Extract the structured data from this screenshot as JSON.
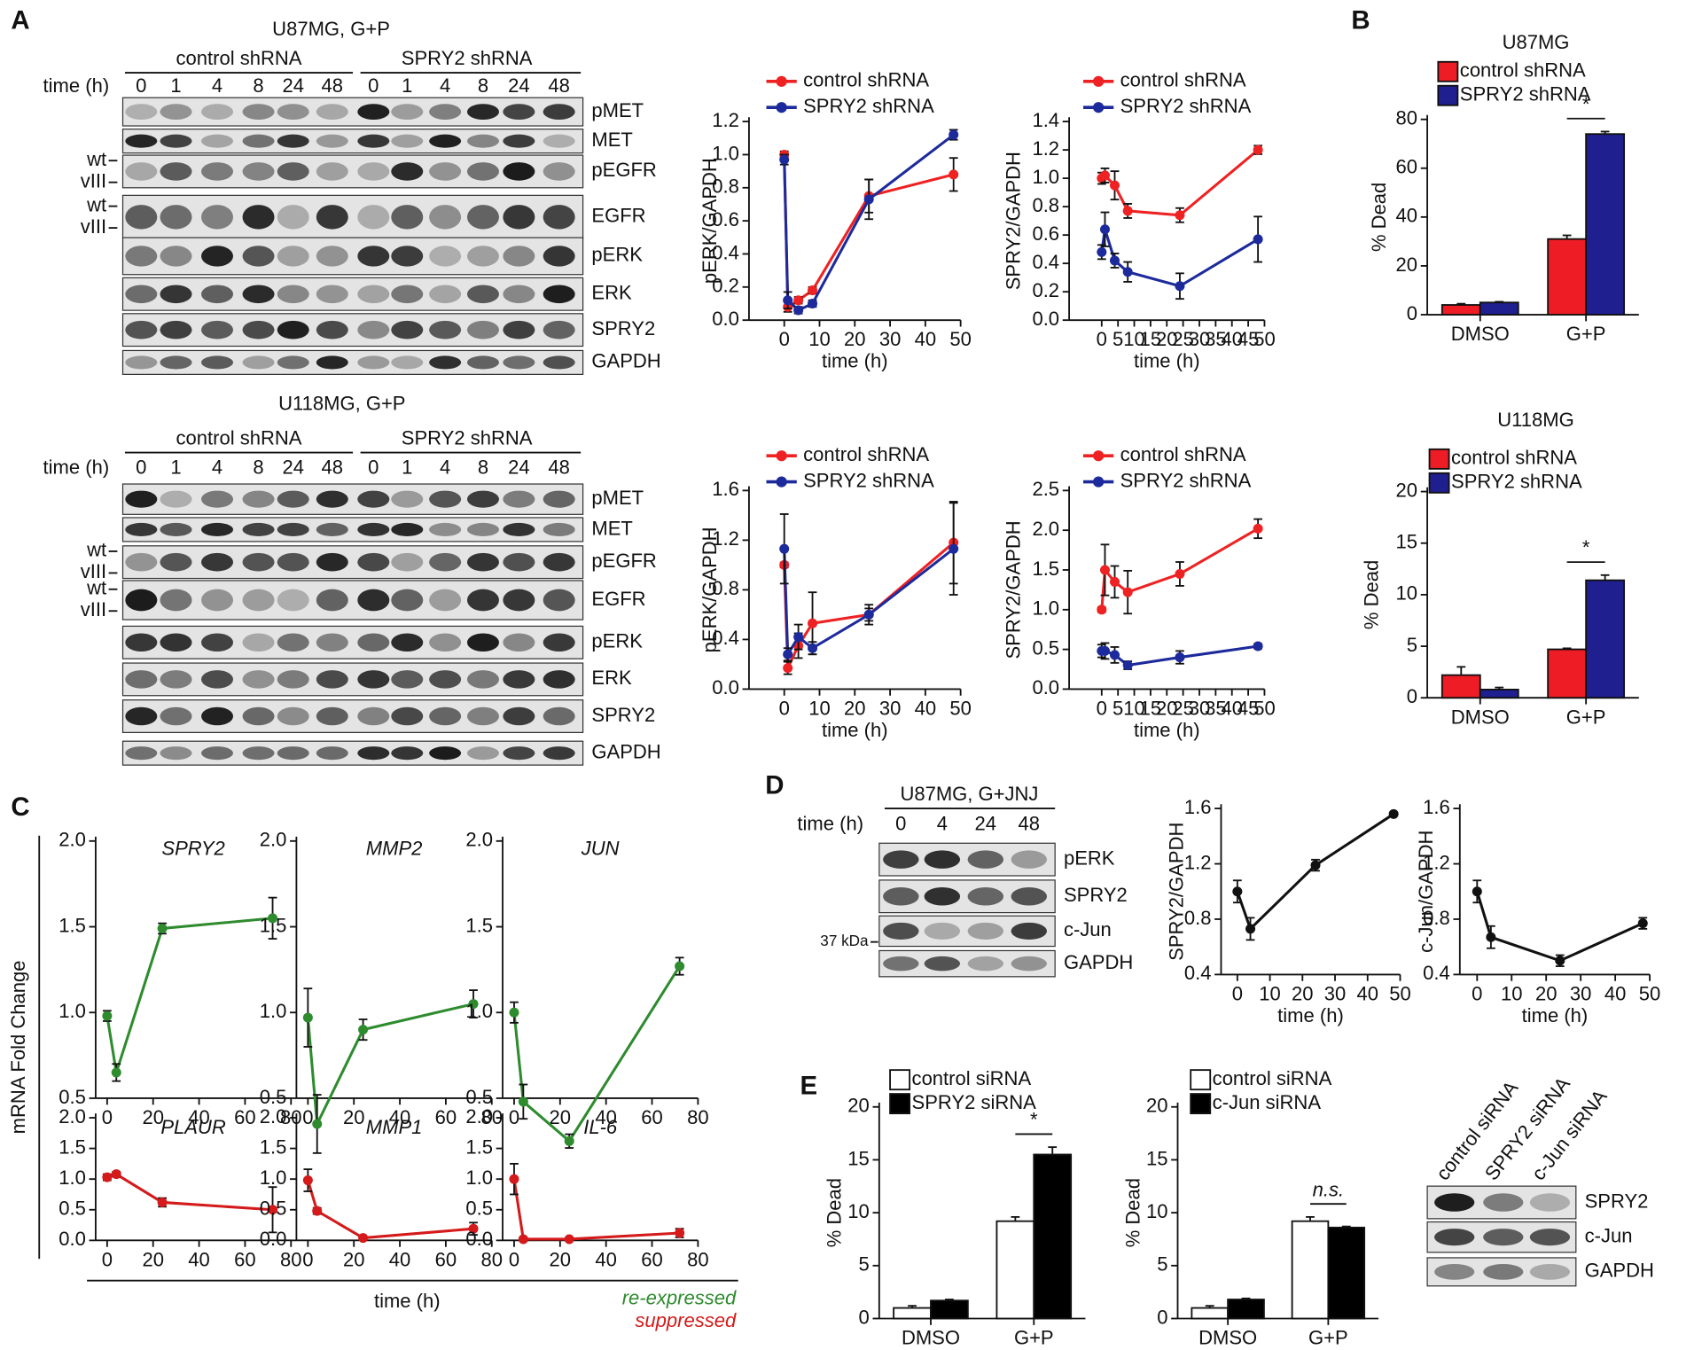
{
  "panel_labels": [
    "A",
    "B",
    "C",
    "D",
    "E"
  ],
  "blots": [
    {
      "title": "U87MG, G+P",
      "groups": [
        "control shRNA",
        "SPRY2 shRNA"
      ],
      "time_label": "time (h)",
      "lanes": [
        0,
        1,
        4,
        8,
        24,
        48,
        0,
        1,
        4,
        8,
        24,
        48
      ],
      "proteins": [
        "pMET",
        "MET",
        "pEGFR",
        "EGFR",
        "pERK",
        "ERK",
        "SPRY2",
        "GAPDH"
      ],
      "isoforms": [
        "wt",
        "vIII"
      ]
    },
    {
      "title": "U118MG, G+P",
      "groups": [
        "control shRNA",
        "SPRY2 shRNA"
      ],
      "time_label": "time (h)",
      "lanes": [
        0,
        1,
        4,
        8,
        24,
        48,
        0,
        1,
        4,
        8,
        24,
        48
      ],
      "proteins": [
        "pMET",
        "MET",
        "pEGFR",
        "EGFR",
        "pERK",
        "ERK",
        "SPRY2",
        "GAPDH"
      ],
      "isoforms": [
        "wt",
        "vIII"
      ]
    },
    {
      "title": "U87MG, G+JNJ",
      "time_label": "time (h)",
      "lanes": [
        0,
        4,
        24,
        48
      ],
      "proteins": [
        "pERK",
        "SPRY2",
        "c-Jun",
        "GAPDH"
      ],
      "size_marker": "37 kDa"
    },
    {
      "lanes": [
        "control siRNA",
        "SPRY2 siRNA",
        "c-Jun siRNA"
      ],
      "proteins": [
        "SPRY2",
        "c-Jun",
        "GAPDH"
      ]
    }
  ],
  "panel_c": {
    "y_label": "mRNA Fold Change",
    "x_label": "time (h)",
    "legend": [
      {
        "label": "re-expressed",
        "color": "#2e8b2e"
      },
      {
        "label": "suppressed",
        "color": "#d41a1a"
      }
    ]
  },
  "chart_data": [
    {
      "type": "line",
      "x_label": "time (h)",
      "y_label": "pERK/GAPDH",
      "x": [
        0,
        1,
        4,
        8,
        24,
        48
      ],
      "series": [
        {
          "name": "control shRNA",
          "color": "#ee2222",
          "values": [
            1.0,
            0.08,
            0.12,
            0.18,
            0.75,
            0.88
          ],
          "errors": [
            0.02,
            0.03,
            0.02,
            0.02,
            0.1,
            0.1
          ]
        },
        {
          "name": "SPRY2 shRNA",
          "color": "#1c2a9c",
          "values": [
            0.97,
            0.12,
            0.06,
            0.1,
            0.73,
            1.12
          ],
          "errors": [
            0.03,
            0.05,
            0.02,
            0.02,
            0.12,
            0.03
          ]
        }
      ],
      "xlim": [
        -10,
        50
      ],
      "xticks": [
        0,
        10,
        20,
        30,
        40,
        50
      ],
      "ylim": [
        0,
        1.2
      ],
      "yticks": [
        {
          "value": 0,
          "label": "0.0"
        },
        0.2,
        0.4,
        0.6,
        0.8,
        {
          "value": 1,
          "label": "1.0"
        },
        1.2
      ]
    },
    {
      "type": "line",
      "x_label": "time (h)",
      "y_label": "SPRY2/GAPDH",
      "x": [
        0,
        1,
        4,
        8,
        24,
        48
      ],
      "series": [
        {
          "name": "control shRNA",
          "color": "#ee2222",
          "values": [
            1.0,
            1.02,
            0.95,
            0.77,
            0.74,
            1.2
          ],
          "errors": [
            0.04,
            0.05,
            0.1,
            0.05,
            0.05,
            0.03
          ]
        },
        {
          "name": "SPRY2 shRNA",
          "color": "#1c2a9c",
          "values": [
            0.48,
            0.64,
            0.42,
            0.34,
            0.24,
            0.57
          ],
          "errors": [
            0.05,
            0.12,
            0.05,
            0.07,
            0.09,
            0.16
          ]
        }
      ],
      "xlim": [
        -10,
        50
      ],
      "xticks": [
        0,
        5,
        10,
        15,
        20,
        25,
        30,
        35,
        40,
        45,
        50
      ],
      "ylim": [
        0,
        1.4
      ],
      "yticks": [
        {
          "value": 0,
          "label": "0.0"
        },
        0.2,
        0.4,
        0.6,
        0.8,
        {
          "value": 1,
          "label": "1.0"
        },
        1.2,
        1.4
      ]
    },
    {
      "type": "line",
      "x_label": "time (h)",
      "y_label": "pERK/GAPDH",
      "x": [
        0,
        1,
        4,
        8,
        24,
        48
      ],
      "series": [
        {
          "name": "control shRNA",
          "color": "#ee2222",
          "values": [
            1.0,
            0.17,
            0.35,
            0.53,
            0.6,
            1.18
          ],
          "errors": [
            0.02,
            0.05,
            0.1,
            0.25,
            0.05,
            0.33
          ]
        },
        {
          "name": "SPRY2 shRNA",
          "color": "#1c2a9c",
          "values": [
            1.13,
            0.28,
            0.42,
            0.33,
            0.6,
            1.13
          ],
          "errors": [
            0.28,
            0.05,
            0.1,
            0.05,
            0.08,
            0.37
          ]
        }
      ],
      "xlim": [
        -10,
        50
      ],
      "xticks": [
        0,
        10,
        20,
        30,
        40,
        50
      ],
      "ylim": [
        0,
        1.6
      ],
      "yticks": [
        {
          "value": 0,
          "label": "0.0"
        },
        0.4,
        0.8,
        1.2,
        1.6
      ]
    },
    {
      "type": "line",
      "x_label": "time (h)",
      "y_label": "SPRY2/GAPDH",
      "x": [
        0,
        1,
        4,
        8,
        24,
        48
      ],
      "series": [
        {
          "name": "control shRNA",
          "color": "#ee2222",
          "values": [
            1.0,
            1.5,
            1.35,
            1.22,
            1.45,
            2.02
          ],
          "errors": [
            0.03,
            0.32,
            0.2,
            0.27,
            0.15,
            0.12
          ]
        },
        {
          "name": "SPRY2 shRNA",
          "color": "#1c2a9c",
          "values": [
            0.48,
            0.48,
            0.43,
            0.3,
            0.4,
            0.54
          ],
          "errors": [
            0.08,
            0.1,
            0.1,
            0.05,
            0.08,
            0.03
          ]
        }
      ],
      "xlim": [
        -10,
        50
      ],
      "xticks": [
        0,
        5,
        10,
        15,
        20,
        25,
        30,
        35,
        40,
        45,
        50
      ],
      "ylim": [
        0,
        2.5
      ],
      "yticks": [
        {
          "value": 0,
          "label": "0.0"
        },
        0.5,
        {
          "value": 1,
          "label": "1.0"
        },
        1.5,
        {
          "value": 2,
          "label": "2.0"
        },
        2.5
      ]
    },
    {
      "type": "bar",
      "title": "U87MG",
      "y_label": "% Dead",
      "categories": [
        "DMSO",
        "G+P"
      ],
      "series": [
        {
          "name": "control shRNA",
          "color": "#ee1c25",
          "values": [
            4,
            31
          ],
          "errors": [
            0.5,
            1.5
          ]
        },
        {
          "name": "SPRY2 shRNA",
          "color": "#1f1f8f",
          "values": [
            5,
            74
          ],
          "errors": [
            0.3,
            1
          ]
        }
      ],
      "ylim": [
        0,
        80
      ],
      "yticks": [
        0,
        20,
        40,
        60,
        80
      ],
      "annotation": "*"
    },
    {
      "type": "bar",
      "title": "U118MG",
      "y_label": "% Dead",
      "categories": [
        "DMSO",
        "G+P"
      ],
      "series": [
        {
          "name": "control shRNA",
          "color": "#ee1c25",
          "values": [
            2.2,
            4.7
          ],
          "errors": [
            0.8,
            0.1
          ]
        },
        {
          "name": "SPRY2 shRNA",
          "color": "#1f1f8f",
          "values": [
            0.8,
            11.4
          ],
          "errors": [
            0.2,
            0.5
          ]
        }
      ],
      "ylim": [
        0,
        20
      ],
      "yticks": [
        0,
        5,
        10,
        15,
        20
      ],
      "annotation": "*"
    },
    {
      "type": "line",
      "title": "SPRY2",
      "x": [
        0,
        4,
        24,
        72
      ],
      "series": [
        {
          "color": "#2e8b2e",
          "values": [
            0.98,
            0.65,
            1.49,
            1.55
          ],
          "errors": [
            0.03,
            0.05,
            0.03,
            0.12
          ]
        }
      ],
      "xlim": [
        -5,
        80
      ],
      "xticks": [
        0,
        20,
        40,
        60,
        80
      ],
      "ylim": [
        0.5,
        2
      ],
      "yticks": [
        0.5,
        {
          "value": 1,
          "label": "1.0"
        },
        1.5,
        {
          "value": 2,
          "label": "2.0"
        }
      ]
    },
    {
      "type": "line",
      "title": "MMP2",
      "x": [
        0,
        4,
        24,
        72
      ],
      "series": [
        {
          "color": "#2e8b2e",
          "values": [
            0.97,
            0.35,
            0.9,
            1.05
          ],
          "errors": [
            0.17,
            0.17,
            0.06,
            0.08
          ]
        }
      ],
      "xlim": [
        -5,
        80
      ],
      "xticks": [
        0,
        20,
        40,
        60,
        80
      ],
      "ylim": [
        0.5,
        2
      ],
      "yticks": [
        0.5,
        {
          "value": 1,
          "label": "1.0"
        },
        1.5,
        {
          "value": 2,
          "label": "2.0"
        }
      ]
    },
    {
      "type": "line",
      "title": "JUN",
      "x": [
        0,
        4,
        24,
        72
      ],
      "series": [
        {
          "color": "#2e8b2e",
          "values": [
            1.0,
            0.48,
            0.25,
            1.27
          ],
          "errors": [
            0.06,
            0.1,
            0.04,
            0.05
          ]
        }
      ],
      "xlim": [
        -5,
        80
      ],
      "xticks": [
        0,
        20,
        40,
        60,
        80
      ],
      "ylim": [
        0.5,
        2
      ],
      "yticks": [
        0.5,
        {
          "value": 1,
          "label": "1.0"
        },
        1.5,
        {
          "value": 2,
          "label": "2.0"
        }
      ]
    },
    {
      "type": "line",
      "title": "PLAUR",
      "x": [
        0,
        4,
        24,
        72
      ],
      "series": [
        {
          "color": "#d41a1a",
          "values": [
            1.03,
            1.08,
            0.62,
            0.5
          ],
          "errors": [
            0.05,
            0.04,
            0.07,
            0.37
          ]
        }
      ],
      "xlim": [
        -5,
        80
      ],
      "xticks": [
        0,
        20,
        40,
        60,
        80
      ],
      "ylim": [
        0,
        2
      ],
      "yticks": [
        {
          "value": 0,
          "label": "0.0"
        },
        0.5,
        {
          "value": 1,
          "label": "1.0"
        },
        1.5,
        {
          "value": 2,
          "label": "2.0"
        }
      ]
    },
    {
      "type": "line",
      "title": "MMP1",
      "x": [
        0,
        4,
        24,
        72
      ],
      "series": [
        {
          "color": "#d41a1a",
          "values": [
            0.98,
            0.48,
            0.04,
            0.19
          ],
          "errors": [
            0.18,
            0.05,
            0.02,
            0.1
          ]
        }
      ],
      "xlim": [
        -5,
        80
      ],
      "xticks": [
        0,
        20,
        40,
        60,
        80
      ],
      "ylim": [
        0,
        2
      ],
      "yticks": [
        {
          "value": 0,
          "label": "0.0"
        },
        0.5,
        {
          "value": 1,
          "label": "1.0"
        },
        1.5,
        {
          "value": 2,
          "label": "2.0"
        }
      ]
    },
    {
      "type": "line",
      "title": "IL-6",
      "x": [
        0,
        4,
        24,
        72
      ],
      "series": [
        {
          "color": "#d41a1a",
          "values": [
            1.0,
            0.02,
            0.02,
            0.12
          ],
          "errors": [
            0.25,
            0.03,
            0.02,
            0.07
          ]
        }
      ],
      "xlim": [
        -5,
        80
      ],
      "xticks": [
        0,
        20,
        40,
        60,
        80
      ],
      "ylim": [
        0,
        2
      ],
      "yticks": [
        {
          "value": 0,
          "label": "0.0"
        },
        0.5,
        {
          "value": 1,
          "label": "1.0"
        },
        1.5,
        {
          "value": 2,
          "label": "2.0"
        }
      ]
    },
    {
      "type": "line",
      "x_label": "time (h)",
      "y_label": "SPRY2/GAPDH",
      "x": [
        0,
        4,
        24,
        48
      ],
      "series": [
        {
          "color": "#111111",
          "values": [
            1.0,
            0.73,
            1.19,
            1.56
          ],
          "errors": [
            0.08,
            0.08,
            0.04,
            0.01
          ]
        }
      ],
      "xlim": [
        -5,
        50
      ],
      "xticks": [
        0,
        10,
        20,
        30,
        40,
        50
      ],
      "ylim": [
        0.4,
        1.6
      ],
      "yticks": [
        0.4,
        0.8,
        1.2,
        1.6
      ]
    },
    {
      "type": "line",
      "x_label": "time (h)",
      "y_label": "c-Jun/GAPDH",
      "x": [
        0,
        4,
        24,
        48
      ],
      "series": [
        {
          "color": "#111111",
          "values": [
            1.0,
            0.67,
            0.5,
            0.77
          ],
          "errors": [
            0.08,
            0.08,
            0.04,
            0.04
          ]
        }
      ],
      "xlim": [
        -5,
        50
      ],
      "xticks": [
        0,
        10,
        20,
        30,
        40,
        50
      ],
      "ylim": [
        0.4,
        1.6
      ],
      "yticks": [
        0.4,
        0.8,
        1.2,
        1.6
      ]
    },
    {
      "type": "bar",
      "y_label": "% Dead",
      "categories": [
        "DMSO",
        "G+P"
      ],
      "series": [
        {
          "name": "control siRNA",
          "color": "#ffffff",
          "values": [
            1,
            9.2
          ],
          "errors": [
            0.2,
            0.4
          ]
        },
        {
          "name": "SPRY2 siRNA",
          "color": "#000000",
          "values": [
            1.7,
            15.5
          ],
          "errors": [
            0.1,
            0.7
          ]
        }
      ],
      "ylim": [
        0,
        20
      ],
      "yticks": [
        0,
        5,
        10,
        15,
        20
      ],
      "annotation": "*"
    },
    {
      "type": "bar",
      "y_label": "% Dead",
      "categories": [
        "DMSO",
        "G+P"
      ],
      "series": [
        {
          "name": "control siRNA",
          "color": "#ffffff",
          "values": [
            1,
            9.2
          ],
          "errors": [
            0.2,
            0.4
          ]
        },
        {
          "name": "c-Jun siRNA",
          "color": "#000000",
          "values": [
            1.8,
            8.6
          ],
          "errors": [
            0.1,
            0.1
          ]
        }
      ],
      "ylim": [
        0,
        20
      ],
      "yticks": [
        0,
        5,
        10,
        15,
        20
      ],
      "annotation": "n.s."
    }
  ]
}
